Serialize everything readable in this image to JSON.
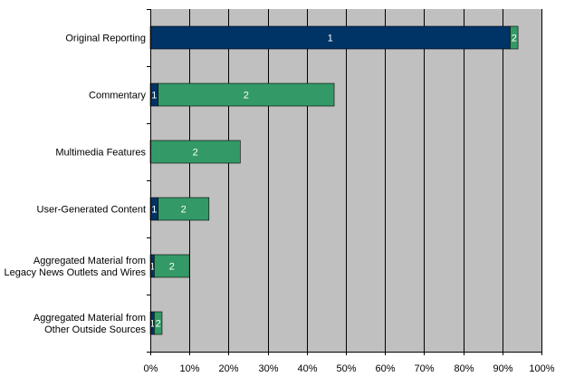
{
  "chart_data": {
    "type": "bar",
    "orientation": "horizontal",
    "stacked": true,
    "categories": [
      [
        "Original Reporting"
      ],
      [
        "Commentary"
      ],
      [
        "Multimedia Features"
      ],
      [
        "User-Generated Content"
      ],
      [
        "Aggregated Material from",
        "Legacy News Outlets and Wires"
      ],
      [
        "Aggregated Material from",
        "Other Outside Sources"
      ]
    ],
    "series": [
      {
        "name": "",
        "label": "1",
        "color": "#003366",
        "values": [
          92,
          2,
          0,
          2,
          1,
          1
        ]
      },
      {
        "name": "",
        "label": "2",
        "color": "#339966",
        "values": [
          2,
          45,
          23,
          13,
          9,
          2
        ]
      }
    ],
    "xlim": [
      0,
      100
    ],
    "xticks": [
      "0%",
      "10%",
      "20%",
      "30%",
      "40%",
      "50%",
      "60%",
      "70%",
      "80%",
      "90%",
      "100%"
    ],
    "grid": true,
    "plot_background": "#c0c0c0",
    "legend": "none",
    "title": "",
    "xlabel": "",
    "ylabel": ""
  }
}
